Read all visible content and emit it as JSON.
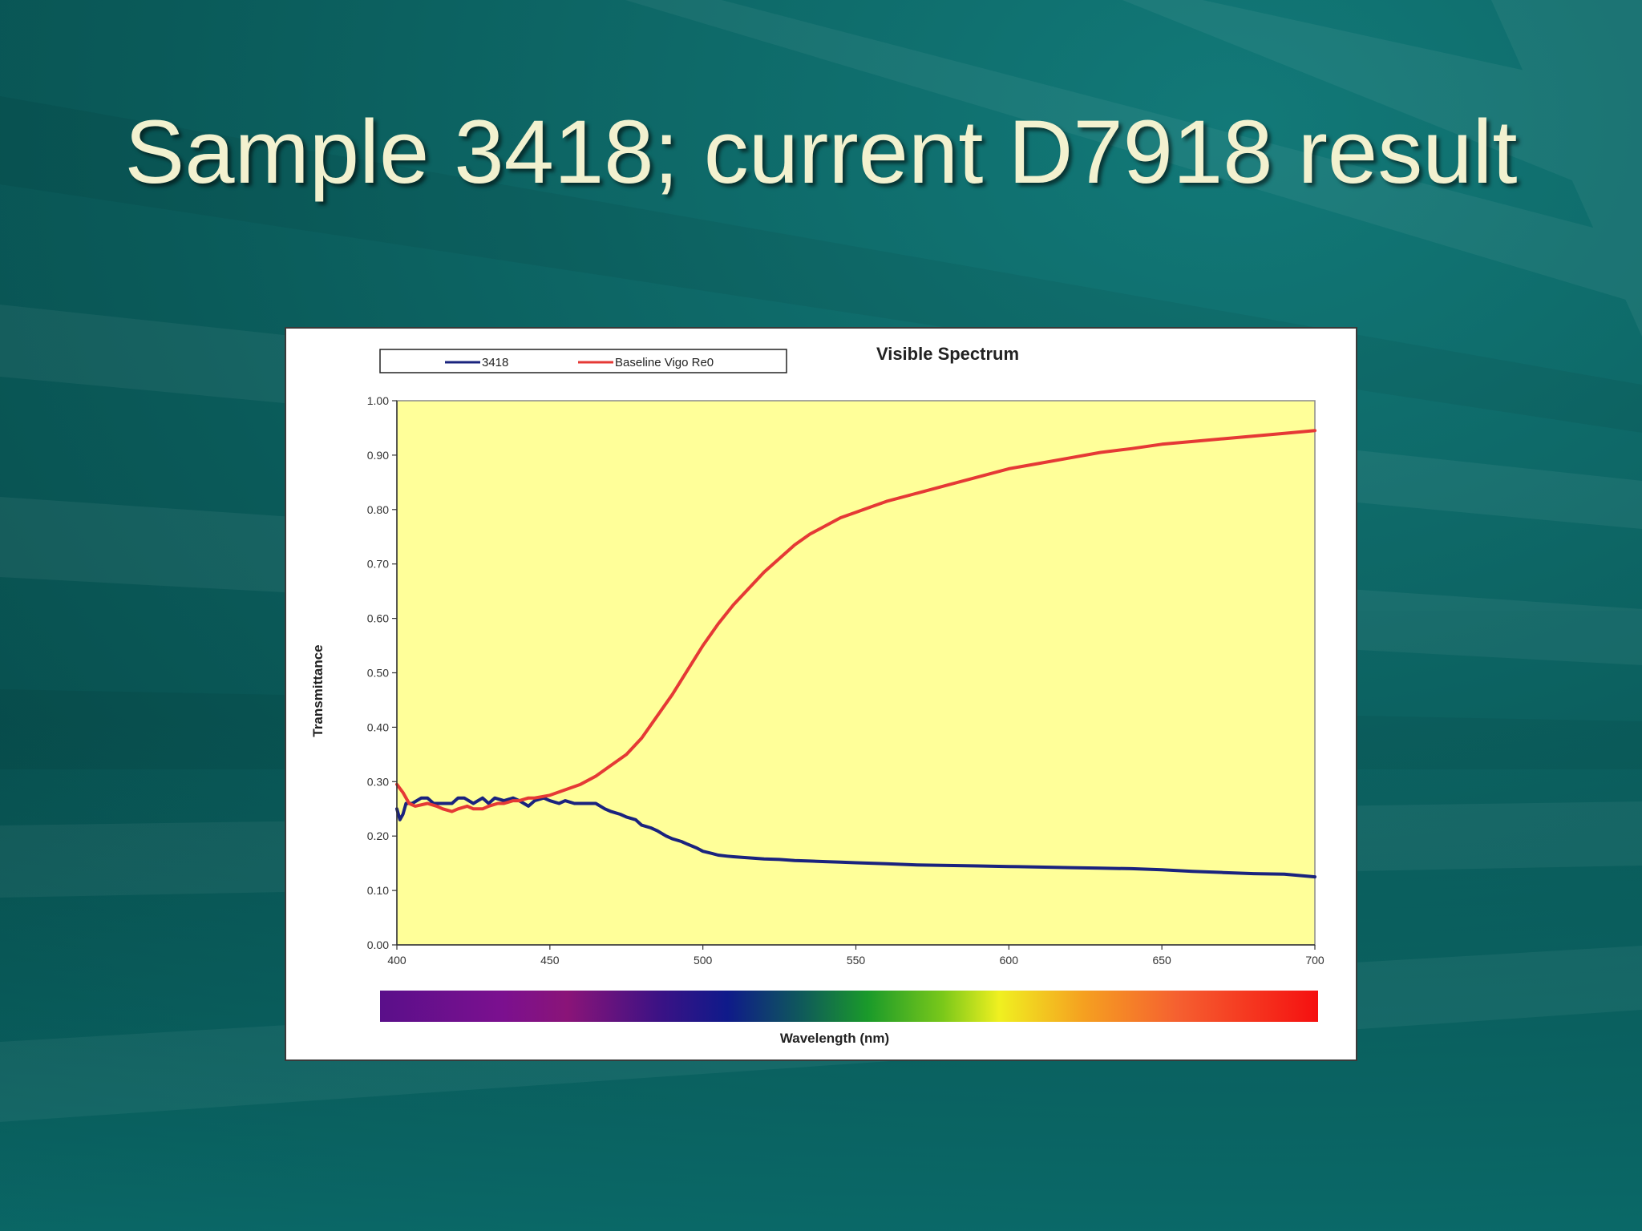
{
  "slide": {
    "title": "Sample 3418; current D7918 result",
    "background_color": "#0b5f5e",
    "title_color": "#f2f1cf"
  },
  "chart_data": {
    "type": "line",
    "title": "Visible Spectrum",
    "xlabel": "Wavelength (nm)",
    "ylabel": "Transmittance",
    "xlim": [
      400,
      700
    ],
    "ylim": [
      0,
      1
    ],
    "x_ticks": [
      "400",
      "450",
      "500",
      "550",
      "600",
      "650",
      "700"
    ],
    "y_ticks": [
      "0.00",
      "0.10",
      "0.20",
      "0.30",
      "0.40",
      "0.50",
      "0.60",
      "0.70",
      "0.80",
      "0.90",
      "1.00"
    ],
    "plot_background": "#ffff99",
    "legend_position": "top-left",
    "grid": false,
    "has_wavelength_color_bar": true,
    "series": [
      {
        "name": "3418",
        "color": "#1a237e",
        "x": [
          400,
          401,
          402,
          403,
          405,
          408,
          410,
          412,
          415,
          418,
          420,
          422,
          425,
          428,
          430,
          432,
          435,
          438,
          440,
          443,
          445,
          448,
          450,
          453,
          455,
          458,
          460,
          463,
          465,
          468,
          470,
          473,
          475,
          478,
          480,
          483,
          485,
          488,
          490,
          493,
          495,
          498,
          500,
          503,
          505,
          508,
          510,
          515,
          520,
          525,
          530,
          535,
          540,
          545,
          550,
          560,
          570,
          580,
          590,
          600,
          610,
          620,
          630,
          640,
          650,
          660,
          670,
          680,
          690,
          700
        ],
        "y": [
          0.25,
          0.23,
          0.24,
          0.26,
          0.26,
          0.27,
          0.27,
          0.26,
          0.26,
          0.26,
          0.27,
          0.27,
          0.26,
          0.27,
          0.26,
          0.27,
          0.265,
          0.27,
          0.265,
          0.255,
          0.265,
          0.27,
          0.265,
          0.26,
          0.265,
          0.26,
          0.26,
          0.26,
          0.26,
          0.25,
          0.245,
          0.24,
          0.235,
          0.23,
          0.22,
          0.215,
          0.21,
          0.2,
          0.195,
          0.19,
          0.185,
          0.178,
          0.172,
          0.168,
          0.165,
          0.163,
          0.162,
          0.16,
          0.158,
          0.157,
          0.155,
          0.154,
          0.153,
          0.152,
          0.151,
          0.149,
          0.147,
          0.146,
          0.145,
          0.144,
          0.143,
          0.142,
          0.141,
          0.14,
          0.138,
          0.135,
          0.133,
          0.131,
          0.13,
          0.125
        ]
      },
      {
        "name": "Baseline Vigo Re0",
        "color": "#e53935",
        "x": [
          400,
          402,
          404,
          406,
          410,
          413,
          415,
          418,
          420,
          423,
          425,
          428,
          430,
          433,
          435,
          438,
          440,
          443,
          445,
          450,
          455,
          460,
          465,
          470,
          475,
          480,
          485,
          490,
          495,
          500,
          505,
          510,
          515,
          520,
          525,
          530,
          535,
          540,
          545,
          550,
          555,
          560,
          570,
          580,
          590,
          600,
          610,
          620,
          630,
          640,
          650,
          660,
          670,
          680,
          690,
          700
        ],
        "y": [
          0.295,
          0.28,
          0.26,
          0.255,
          0.26,
          0.255,
          0.25,
          0.245,
          0.25,
          0.255,
          0.25,
          0.25,
          0.255,
          0.26,
          0.26,
          0.265,
          0.265,
          0.27,
          0.27,
          0.275,
          0.285,
          0.295,
          0.31,
          0.33,
          0.35,
          0.38,
          0.42,
          0.46,
          0.505,
          0.55,
          0.59,
          0.625,
          0.655,
          0.685,
          0.71,
          0.735,
          0.755,
          0.77,
          0.785,
          0.795,
          0.805,
          0.815,
          0.83,
          0.845,
          0.86,
          0.875,
          0.885,
          0.895,
          0.905,
          0.912,
          0.92,
          0.925,
          0.93,
          0.935,
          0.94,
          0.945
        ]
      }
    ]
  }
}
